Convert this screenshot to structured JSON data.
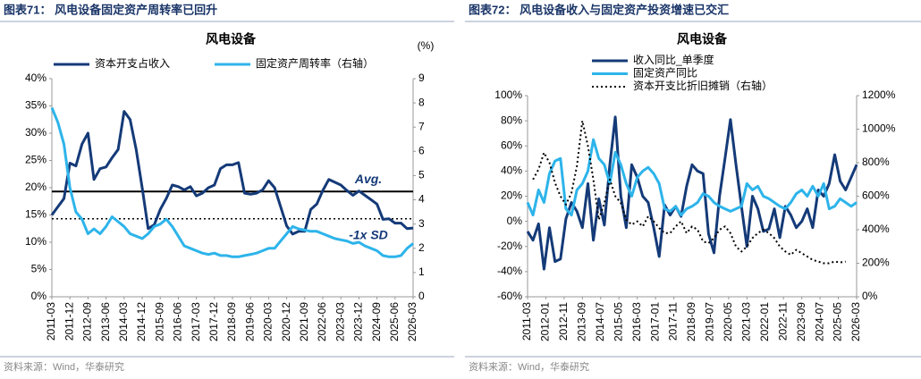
{
  "chart_data": [
    {
      "type": "line",
      "header": "图表71：  风电设备固定资产周转率已回升",
      "title": "风电设备",
      "source": "资料来源：Wind，华泰研究",
      "y2label": "(%)",
      "x": [
        "2011-03",
        "2011-06",
        "2011-09",
        "2011-12",
        "2012-03",
        "2012-06",
        "2012-09",
        "2012-12",
        "2013-03",
        "2013-06",
        "2013-09",
        "2013-12",
        "2014-03",
        "2014-06",
        "2014-09",
        "2014-12",
        "2015-03",
        "2015-06",
        "2015-09",
        "2015-12",
        "2016-03",
        "2016-06",
        "2016-09",
        "2016-12",
        "2017-03",
        "2017-06",
        "2017-09",
        "2017-12",
        "2018-03",
        "2018-06",
        "2018-09",
        "2018-12",
        "2019-03",
        "2019-06",
        "2019-09",
        "2019-12",
        "2020-03",
        "2020-06",
        "2020-09",
        "2020-12",
        "2021-03",
        "2021-06",
        "2021-09",
        "2021-12",
        "2022-03",
        "2022-06",
        "2022-09",
        "2022-12",
        "2023-03",
        "2023-06",
        "2023-09",
        "2023-12",
        "2024-03",
        "2024-06",
        "2024-09",
        "2024-12",
        "2025-03",
        "2025-06",
        "2025-09",
        "2025-12",
        "2026-03"
      ],
      "xticks": [
        "2011-03",
        "2011-12",
        "2012-09",
        "2013-06",
        "2014-03",
        "2014-12",
        "2015-09",
        "2016-06",
        "2017-03",
        "2017-12",
        "2018-09",
        "2019-06",
        "2020-03",
        "2020-12",
        "2021-09",
        "2022-06",
        "2023-03",
        "2023-12",
        "2024-09",
        "2025-06",
        "2026-03"
      ],
      "series": [
        {
          "name": "资本开支占收入",
          "color": "#143a78",
          "values": [
            15,
            16.5,
            18,
            24.5,
            24,
            28,
            30,
            21.5,
            23.5,
            23.8,
            25.5,
            27,
            34,
            32.5,
            27,
            20,
            12.5,
            13.2,
            16,
            18,
            20.5,
            20.2,
            19.6,
            20.2,
            18.5,
            19,
            20,
            20.5,
            23.5,
            24.2,
            24.2,
            24.6,
            19,
            18.8,
            19,
            19.6,
            21.3,
            20,
            16.5,
            13,
            11.5,
            12,
            12,
            16,
            17,
            19.5,
            21.5,
            21,
            20.5,
            19.5,
            18.6,
            19.4,
            18.6,
            17.8,
            17,
            14.2,
            14.3,
            13.5,
            13.5,
            12.5,
            12.6
          ]
        },
        {
          "name": "固定资产周转率（右轴）",
          "color": "#2db4ea",
          "axis": "y2",
          "values": [
            7.8,
            7.2,
            6.3,
            4.5,
            3.5,
            3.2,
            2.6,
            2.8,
            2.6,
            2.9,
            3.3,
            3.1,
            2.9,
            2.6,
            2.5,
            2.4,
            2.6,
            2.9,
            3.0,
            3.2,
            2.9,
            2.5,
            2.1,
            2.0,
            1.9,
            1.8,
            1.75,
            1.8,
            1.7,
            1.7,
            1.65,
            1.65,
            1.7,
            1.75,
            1.8,
            1.9,
            2.0,
            2.0,
            2.3,
            2.6,
            2.9,
            2.8,
            2.75,
            2.7,
            2.7,
            2.6,
            2.5,
            2.4,
            2.35,
            2.3,
            2.2,
            2.25,
            2.1,
            2.0,
            1.9,
            1.7,
            1.65,
            1.65,
            1.7,
            2.0,
            2.2
          ]
        }
      ],
      "reference_lines": [
        {
          "label": "Avg.",
          "value": 19.3,
          "line_style": "solid",
          "color": "#000000"
        },
        {
          "label": "-1x SD",
          "value": 14.3,
          "line_style": "dotted",
          "color": "#000000"
        }
      ],
      "ylim": [
        0,
        40
      ],
      "yticks": [
        {
          "value": 0,
          "label": "0%"
        },
        {
          "value": 5,
          "label": "5%"
        },
        {
          "value": 10,
          "label": "10%"
        },
        {
          "value": 15,
          "label": "15%"
        },
        {
          "value": 20,
          "label": "20%"
        },
        {
          "value": 25,
          "label": "25%"
        },
        {
          "value": 30,
          "label": "30%"
        },
        {
          "value": 35,
          "label": "35%"
        },
        {
          "value": 40,
          "label": "40%"
        }
      ],
      "y2lim": [
        0,
        9
      ],
      "y2ticks": [
        0,
        1,
        2,
        3,
        4,
        5,
        6,
        7,
        8,
        9
      ],
      "grid": false,
      "legend": "top"
    },
    {
      "type": "line",
      "header": "图表72：  风电设备收入与固定资产投资增速已交汇",
      "title": "风电设备",
      "source": "资料来源：Wind，华泰研究",
      "x": [
        "2011-03",
        "2011-06",
        "2011-09",
        "2011-12",
        "2012-03",
        "2012-06",
        "2012-09",
        "2012-12",
        "2013-03",
        "2013-06",
        "2013-09",
        "2013-12",
        "2014-03",
        "2014-06",
        "2014-09",
        "2014-12",
        "2015-03",
        "2015-06",
        "2015-09",
        "2015-12",
        "2016-03",
        "2016-06",
        "2016-09",
        "2016-12",
        "2017-03",
        "2017-06",
        "2017-09",
        "2017-12",
        "2018-03",
        "2018-06",
        "2018-09",
        "2018-12",
        "2019-03",
        "2019-06",
        "2019-09",
        "2019-12",
        "2020-03",
        "2020-06",
        "2020-09",
        "2020-12",
        "2021-03",
        "2021-06",
        "2021-09",
        "2021-12",
        "2022-03",
        "2022-06",
        "2022-09",
        "2022-12",
        "2023-03",
        "2023-06",
        "2023-09",
        "2023-12",
        "2024-03",
        "2024-06",
        "2024-09",
        "2024-12",
        "2025-03",
        "2025-06",
        "2025-09",
        "2025-12",
        "2026-03"
      ],
      "xticks": [
        "2011-03",
        "2012-01",
        "2012-11",
        "2013-09",
        "2014-07",
        "2015-05",
        "2016-03",
        "2017-01",
        "2017-11",
        "2018-09",
        "2019-07",
        "2020-05",
        "2021-03",
        "2022-01",
        "2022-11",
        "2023-09",
        "2024-07",
        "2025-05",
        "2026-03"
      ],
      "series": [
        {
          "name": "收入同比_单季度",
          "color": "#143a78",
          "values": [
            -8,
            -15,
            -2,
            -38,
            -5,
            -32,
            -30,
            2,
            15,
            8,
            -5,
            30,
            -15,
            18,
            -3,
            45,
            83,
            20,
            -5,
            45,
            35,
            20,
            15,
            -5,
            -28,
            13,
            5,
            12,
            4,
            28,
            45,
            40,
            38,
            -10,
            -25,
            20,
            50,
            81,
            45,
            12,
            -20,
            20,
            10,
            -8,
            -6,
            10,
            -13,
            12,
            5,
            -5,
            0,
            10,
            -5,
            25,
            20,
            30,
            53,
            32,
            25,
            35,
            45
          ]
        },
        {
          "name": "固定资产同比",
          "color": "#2db4ea",
          "values": [
            15,
            5,
            25,
            15,
            38,
            48,
            50,
            10,
            5,
            25,
            30,
            40,
            65,
            50,
            45,
            30,
            55,
            45,
            30,
            20,
            35,
            40,
            43,
            38,
            30,
            10,
            8,
            12,
            5,
            10,
            12,
            15,
            22,
            20,
            15,
            12,
            10,
            8,
            10,
            12,
            30,
            25,
            28,
            20,
            18,
            15,
            12,
            10,
            15,
            22,
            25,
            20,
            28,
            20,
            30,
            10,
            12,
            18,
            15,
            12,
            15
          ]
        },
        {
          "name": "资本开支比折旧摊销（右轴）",
          "color": "#000000",
          "axis": "y2",
          "line_style": "dotted",
          "values": [
            null,
            700,
            760,
            860,
            800,
            680,
            600,
            550,
            620,
            780,
            1050,
            900,
            700,
            460,
            560,
            700,
            600,
            560,
            460,
            430,
            450,
            420,
            480,
            450,
            410,
            380,
            380,
            420,
            450,
            380,
            420,
            400,
            330,
            320,
            350,
            400,
            420,
            380,
            300,
            270,
            300,
            350,
            380,
            400,
            380,
            350,
            300,
            270,
            250,
            280,
            260,
            240,
            220,
            210,
            200,
            200,
            210,
            205,
            210,
            null,
            null
          ]
        }
      ],
      "ylim": [
        -60,
        100
      ],
      "yticks": [
        {
          "value": -60,
          "label": "-60%"
        },
        {
          "value": -40,
          "label": "-40%"
        },
        {
          "value": -20,
          "label": "-20%"
        },
        {
          "value": 0,
          "label": "0%"
        },
        {
          "value": 20,
          "label": "20%"
        },
        {
          "value": 40,
          "label": "40%"
        },
        {
          "value": 60,
          "label": "60%"
        },
        {
          "value": 80,
          "label": "80%"
        },
        {
          "value": 100,
          "label": "100%"
        }
      ],
      "y2lim": [
        0,
        1200
      ],
      "y2ticks": [
        {
          "value": 0,
          "label": "0%"
        },
        {
          "value": 200,
          "label": "200%"
        },
        {
          "value": 400,
          "label": "400%"
        },
        {
          "value": 600,
          "label": "600%"
        },
        {
          "value": 800,
          "label": "800%"
        },
        {
          "value": 1000,
          "label": "1000%"
        },
        {
          "value": 1200,
          "label": "1200%"
        }
      ],
      "grid": false,
      "legend": "top-left"
    }
  ]
}
